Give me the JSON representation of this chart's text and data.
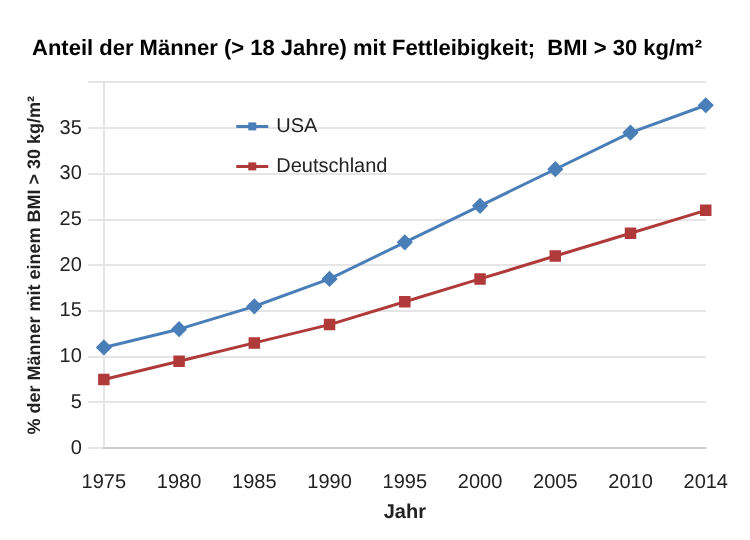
{
  "chart_data": {
    "type": "line",
    "title": "Anteil der Männer (> 18 Jahre) mit Fettleibigkeit;  BMI > 30 kg/m²",
    "xlabel": "Jahr",
    "ylabel": "% der Männer mit einem BMI > 30 kg/m²",
    "categories": [
      "1975",
      "1980",
      "1985",
      "1990",
      "1995",
      "2000",
      "2005",
      "2010",
      "2014"
    ],
    "series": [
      {
        "name": "USA",
        "color": "#4a7eb8",
        "marker": "diamond",
        "values": [
          11,
          13,
          15.5,
          18.5,
          22.5,
          26.5,
          30.5,
          34.5,
          37.5
        ]
      },
      {
        "name": "Deutschland",
        "color": "#b03a3a",
        "marker": "square",
        "values": [
          7.5,
          9.5,
          11.5,
          13.5,
          16,
          18.5,
          21,
          23.5,
          26
        ]
      }
    ],
    "ylim": [
      0,
      40
    ],
    "yticks": [
      0,
      5,
      10,
      15,
      20,
      25,
      30,
      35,
      {
        "value": 40,
        "label": null
      }
    ],
    "grid": "y",
    "legend": "top left"
  }
}
